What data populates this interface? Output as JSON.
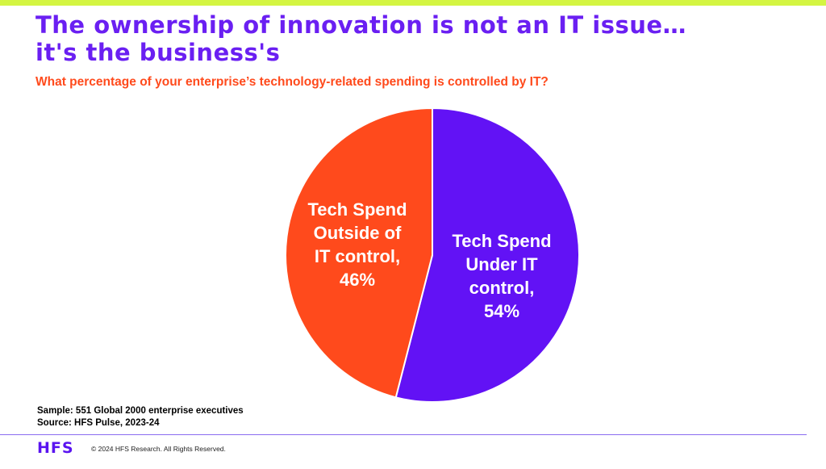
{
  "slide": {
    "title_line1": "The ownership of innovation is not an IT issue…",
    "title_line2": "it's the business's",
    "subtitle": "What percentage of your enterprise’s technology-related spending is controlled by IT?",
    "sample_note": "Sample: 551 Global 2000 enterprise executives",
    "source_note": "Source: HFS Pulse, 2023-24",
    "logo": "HFS",
    "copyright": "© 2024 HFS Research. All Rights Reserved."
  },
  "colors": {
    "accent_bar": "#d4f542",
    "title": "#6a1ff2",
    "subtitle": "#ff4a1c",
    "under_it": "#6212f5",
    "outside_it": "#ff4a1c",
    "footer_line": "#8a6cf0",
    "logo": "#5a14f0"
  },
  "chart_data": {
    "type": "pie",
    "slices": [
      {
        "key": "under_it",
        "value": 54,
        "label_lines": [
          "Tech Spend",
          "Under IT",
          "control,",
          "54%"
        ]
      },
      {
        "key": "outside_it",
        "value": 46,
        "label_lines": [
          "Tech Spend",
          "Outside of",
          "IT control,",
          "46%"
        ]
      }
    ],
    "start_angle": "12 o'clock",
    "direction": "clockwise",
    "legend": "none"
  }
}
